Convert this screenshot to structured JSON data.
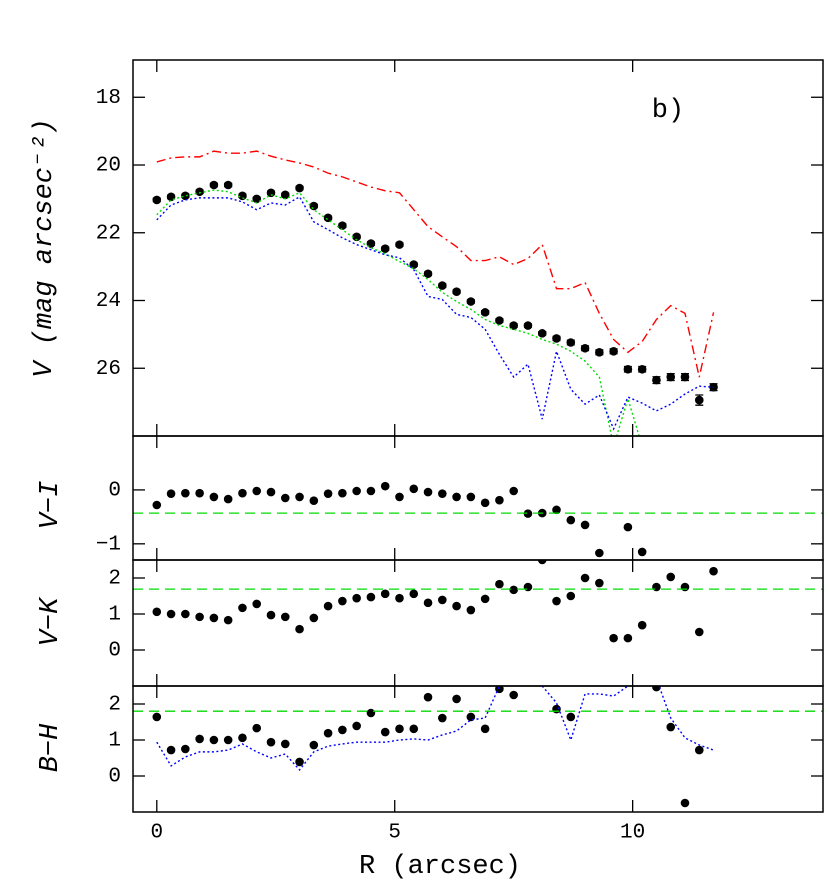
{
  "chart_data": [
    {
      "type": "scatter",
      "ylabel": "V (mag arcsec⁻²)",
      "annotation": "b)",
      "x": [
        0,
        0.3,
        0.6,
        0.9,
        1.2,
        1.5,
        1.8,
        2.1,
        2.4,
        2.7,
        3,
        3.3,
        3.6,
        3.9,
        4.2,
        4.5,
        4.8,
        5.1,
        5.4,
        5.7,
        6,
        6.3,
        6.6,
        6.9,
        7.2,
        7.5,
        7.8,
        8.1,
        8.4,
        8.7,
        9,
        9.3,
        9.6,
        9.9,
        10.2,
        10.5,
        10.8,
        11.1,
        11.4,
        11.7
      ],
      "xlim": [
        -0.5,
        14
      ],
      "xticks": [
        0,
        5,
        10
      ],
      "ylim": [
        28,
        16.9
      ],
      "yticks": [
        18,
        20,
        22,
        24,
        26
      ],
      "series": [
        {
          "style": "points",
          "color": "#000000",
          "values": [
            21.03,
            20.94,
            20.91,
            20.79,
            20.59,
            20.59,
            20.91,
            21.0,
            20.82,
            20.88,
            20.68,
            21.21,
            21.56,
            21.79,
            22.12,
            22.32,
            22.47,
            22.35,
            22.94,
            23.21,
            23.56,
            23.74,
            24.03,
            24.35,
            24.59,
            24.74,
            24.74,
            24.97,
            25.12,
            25.24,
            25.41,
            25.53,
            25.5,
            26.03,
            26.03,
            26.35,
            26.26,
            26.26,
            26.94,
            26.56
          ],
          "errors": [
            0.05,
            0.05,
            0.05,
            0.05,
            0.05,
            0.05,
            0.05,
            0.05,
            0.05,
            0.05,
            0.05,
            0.05,
            0.05,
            0.05,
            0.05,
            0.05,
            0.05,
            0.05,
            0.05,
            0.05,
            0.05,
            0.05,
            0.05,
            0.05,
            0.05,
            0.05,
            0.05,
            0.05,
            0.06,
            0.07,
            0.07,
            0.07,
            0.07,
            0.08,
            0.08,
            0.1,
            0.1,
            0.1,
            0.15,
            0.1
          ]
        },
        {
          "style": "dashdot",
          "color": "#ff0000",
          "values": [
            19.91,
            19.79,
            19.76,
            19.76,
            19.59,
            19.65,
            19.65,
            19.59,
            19.74,
            19.85,
            19.94,
            20.06,
            20.24,
            20.35,
            20.5,
            20.65,
            20.76,
            20.82,
            21.32,
            21.82,
            22.12,
            22.41,
            22.82,
            22.82,
            22.71,
            22.94,
            22.76,
            22.35,
            23.65,
            23.65,
            23.47,
            24.38,
            25.15,
            25.53,
            25.21,
            24.56,
            24.15,
            24.38,
            26.26,
            24.35
          ]
        },
        {
          "style": "dotted",
          "color": "#00dd00",
          "values": [
            21.47,
            21.03,
            20.91,
            20.82,
            20.74,
            20.79,
            20.97,
            21.12,
            20.88,
            21.0,
            20.82,
            21.32,
            21.62,
            21.91,
            22.21,
            22.44,
            22.62,
            22.85,
            23.06,
            23.38,
            23.76,
            24.03,
            24.26,
            24.56,
            24.74,
            24.85,
            24.97,
            25.15,
            25.29,
            25.5,
            25.79,
            26.26,
            28.3,
            26.9,
            28.3,
            null,
            null,
            null,
            null,
            null
          ]
        },
        {
          "style": "dotted",
          "color": "#0000ff",
          "values": [
            21.62,
            21.18,
            21.03,
            20.97,
            20.97,
            20.97,
            21.09,
            21.32,
            21.12,
            21.18,
            20.94,
            21.68,
            21.91,
            22.15,
            22.35,
            22.5,
            22.65,
            22.74,
            23.09,
            23.88,
            23.97,
            24.41,
            24.5,
            24.85,
            25.59,
            26.26,
            25.88,
            27.5,
            25.5,
            26.62,
            27.06,
            26.79,
            27.79,
            26.85,
            27.03,
            27.26,
            27.06,
            26.76,
            26.53,
            26.56
          ]
        }
      ]
    },
    {
      "type": "scatter",
      "ylabel": "V−I",
      "x": [
        0,
        0.3,
        0.6,
        0.9,
        1.2,
        1.5,
        1.8,
        2.1,
        2.4,
        2.7,
        3,
        3.3,
        3.6,
        3.9,
        4.2,
        4.5,
        4.8,
        5.1,
        5.4,
        5.7,
        6,
        6.3,
        6.6,
        6.9,
        7.2,
        7.5,
        7.8,
        8.1,
        8.4,
        8.7,
        9,
        9.3,
        9.6,
        9.9,
        10.2,
        10.5,
        10.8,
        11.1,
        11.4,
        11.7
      ],
      "xlim": [
        -0.5,
        14
      ],
      "xticks": [
        0,
        5,
        10
      ],
      "ylim": [
        -1.3,
        1
      ],
      "yticks": [
        0,
        {
          "value": -1,
          "label": "−1"
        }
      ],
      "hline": {
        "value": -0.43,
        "color": "#00dd00"
      },
      "series": [
        {
          "style": "points",
          "color": "#000000",
          "values": [
            -0.28,
            -0.07,
            -0.06,
            -0.06,
            -0.13,
            -0.17,
            -0.06,
            -0.02,
            -0.04,
            -0.15,
            -0.13,
            -0.2,
            -0.07,
            -0.06,
            -0.02,
            -0.02,
            0.07,
            -0.13,
            0.02,
            -0.04,
            -0.07,
            -0.13,
            -0.13,
            -0.24,
            -0.19,
            -0.02,
            -0.44,
            -0.43,
            -0.37,
            -0.56,
            -0.65,
            -1.17,
            null,
            -0.69,
            -1.15,
            null,
            null,
            null,
            null,
            null
          ]
        }
      ]
    },
    {
      "type": "scatter",
      "ylabel": "V−K",
      "x": [
        0,
        0.3,
        0.6,
        0.9,
        1.2,
        1.5,
        1.8,
        2.1,
        2.4,
        2.7,
        3,
        3.3,
        3.6,
        3.9,
        4.2,
        4.5,
        4.8,
        5.1,
        5.4,
        5.7,
        6,
        6.3,
        6.6,
        6.9,
        7.2,
        7.5,
        7.8,
        8.1,
        8.4,
        8.7,
        9,
        9.3,
        9.6,
        9.9,
        10.2,
        10.5,
        10.8,
        11.1,
        11.4,
        11.7
      ],
      "xlim": [
        -0.5,
        14
      ],
      "xticks": [
        0,
        5,
        10
      ],
      "ylim": [
        -1,
        2.5
      ],
      "yticks": [
        0,
        1,
        2
      ],
      "hline": {
        "value": 1.69,
        "color": "#00dd00"
      },
      "series": [
        {
          "style": "points",
          "color": "#000000",
          "values": [
            1.06,
            1.0,
            1.0,
            0.92,
            0.89,
            0.83,
            1.17,
            1.28,
            0.97,
            0.92,
            0.58,
            0.89,
            1.22,
            1.36,
            1.44,
            1.47,
            1.56,
            1.44,
            1.56,
            1.31,
            1.39,
            1.22,
            1.11,
            1.42,
            1.83,
            1.67,
            1.75,
            2.5,
            1.36,
            1.5,
            2.0,
            1.86,
            0.33,
            0.33,
            0.69,
            1.75,
            2.03,
            1.75,
            0.5,
            2.19
          ]
        }
      ]
    },
    {
      "type": "scatter",
      "ylabel": "B−H",
      "xlabel": "R (arcsec)",
      "x": [
        0,
        0.3,
        0.6,
        0.9,
        1.2,
        1.5,
        1.8,
        2.1,
        2.4,
        2.7,
        3,
        3.3,
        3.6,
        3.9,
        4.2,
        4.5,
        4.8,
        5.1,
        5.4,
        5.7,
        6,
        6.3,
        6.6,
        6.9,
        7.2,
        7.5,
        7.8,
        8.1,
        8.4,
        8.7,
        9,
        9.3,
        9.6,
        9.9,
        10.2,
        10.5,
        10.8,
        11.1,
        11.4,
        11.7
      ],
      "xlim": [
        -0.5,
        14
      ],
      "xticks": [
        0,
        5,
        10
      ],
      "ylim": [
        -1,
        2.5
      ],
      "yticks": [
        0,
        1,
        2
      ],
      "hline": {
        "value": 1.8,
        "color": "#00dd00"
      },
      "series": [
        {
          "style": "points",
          "color": "#000000",
          "values": [
            1.64,
            0.72,
            0.75,
            1.03,
            1.0,
            1.0,
            1.06,
            1.33,
            0.94,
            0.89,
            0.39,
            0.86,
            1.19,
            1.28,
            1.39,
            1.75,
            1.22,
            1.31,
            1.31,
            2.19,
            1.61,
            2.14,
            1.64,
            1.31,
            2.42,
            2.25,
            null,
            null,
            1.86,
            1.64,
            null,
            null,
            null,
            null,
            null,
            2.47,
            1.36,
            -0.75,
            0.72,
            null
          ]
        },
        {
          "style": "dotted",
          "color": "#0000ff",
          "values": [
            0.94,
            0.28,
            0.53,
            0.67,
            0.67,
            0.72,
            0.89,
            0.67,
            0.5,
            0.61,
            0.17,
            0.67,
            0.83,
            0.89,
            0.94,
            0.94,
            0.94,
            1.0,
            1.03,
            1.0,
            1.14,
            1.25,
            1.56,
            1.61,
            2.5,
            2.7,
            2.7,
            2.5,
            2.03,
            1.0,
            2.28,
            2.28,
            2.22,
            2.5,
            2.8,
            2.7,
            1.61,
            1.06,
            0.86,
            0.72
          ]
        }
      ]
    }
  ]
}
